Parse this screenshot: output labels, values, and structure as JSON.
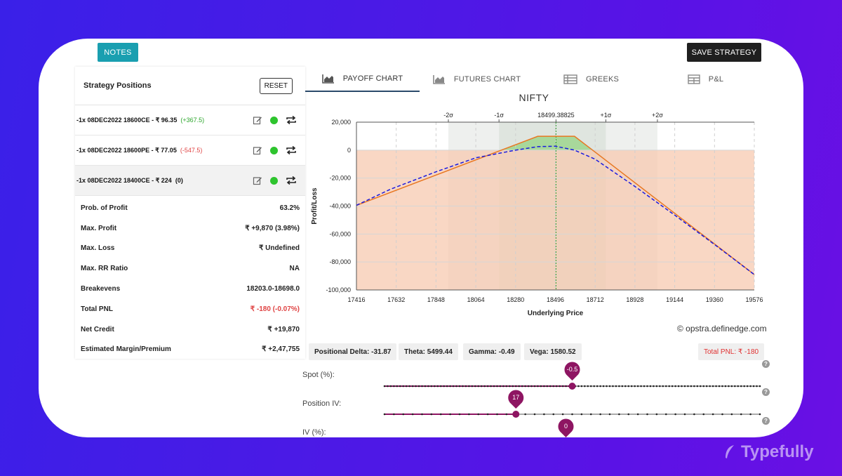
{
  "toolbar": {
    "notes_label": "NOTES",
    "save_label": "SAVE STRATEGY"
  },
  "positions_panel": {
    "title": "Strategy Positions",
    "reset_label": "RESET",
    "positions": [
      {
        "text": "-1x  08DEC2022  18600CE  - ₹ 96.35",
        "pnl": "(+367.5)",
        "pnl_type": "pos"
      },
      {
        "text": "-1x  08DEC2022  18600PE  - ₹ 77.05",
        "pnl": "(-547.5)",
        "pnl_type": "neg"
      },
      {
        "text": "-1x  08DEC2022  18400CE  - ₹ 224",
        "pnl": "(0)",
        "pnl_type": "zero"
      }
    ],
    "stats": [
      {
        "label": "Prob. of Profit",
        "value": "63.2%"
      },
      {
        "label": "Max. Profit",
        "value": "₹ +9,870 (3.98%)"
      },
      {
        "label": "Max. Loss",
        "value": "₹ Undefined"
      },
      {
        "label": "Max. RR Ratio",
        "value": "NA"
      },
      {
        "label": "Breakevens",
        "value": "18203.0-18698.0"
      },
      {
        "label": "Total PNL",
        "value": "₹ -180 (-0.07%)",
        "negative": true
      },
      {
        "label": "Net Credit",
        "value": "₹ +19,870"
      },
      {
        "label": "Estimated Margin/Premium",
        "value": "₹ +2,47,755"
      }
    ]
  },
  "tabs": [
    {
      "label": "PAYOFF CHART",
      "icon": "area-chart-icon",
      "active": true
    },
    {
      "label": "FUTURES CHART",
      "icon": "area-chart-icon",
      "active": false
    },
    {
      "label": "GREEKS",
      "icon": "table-icon",
      "active": false
    },
    {
      "label": "P&L",
      "icon": "grid-icon",
      "active": false
    }
  ],
  "chart_data": {
    "type": "line",
    "title": "NIFTY",
    "xlabel": "Underlying Price",
    "ylabel": "Profit/Loss",
    "xlim": [
      17416,
      19576
    ],
    "ylim": [
      -100000,
      20000
    ],
    "x_ticks": [
      "17416",
      "17632",
      "17848",
      "18064",
      "18280",
      "18496",
      "18712",
      "18928",
      "19144",
      "19360",
      "19576"
    ],
    "y_ticks": [
      "20,000",
      "0",
      "-20,000",
      "-40,000",
      "-60,000",
      "-80,000",
      "-100,000"
    ],
    "sigma_ticks": [
      {
        "label": "-2σ",
        "x": 17915
      },
      {
        "label": "-1σ",
        "x": 18190
      },
      {
        "label": "18499.38825",
        "x": 18499.38825
      },
      {
        "label": "+1σ",
        "x": 18770
      },
      {
        "label": "+2σ",
        "x": 19050
      }
    ],
    "series": [
      {
        "style": "solid",
        "color": "#e87722",
        "x": [
          17416,
          18203,
          18400,
          18600,
          18698,
          19576
        ],
        "y": [
          -39500,
          0,
          9870,
          9870,
          0,
          -89000
        ]
      },
      {
        "style": "dashed",
        "color": "#1a1adf",
        "x": [
          17416,
          17600,
          17848,
          18064,
          18280,
          18400,
          18496,
          18600,
          18712,
          18928,
          19144,
          19360,
          19576
        ],
        "y": [
          -39500,
          -28000,
          -15500,
          -5500,
          0,
          2500,
          2800,
          0,
          -6500,
          -26000,
          -46500,
          -67500,
          -89000
        ]
      }
    ],
    "grid": true
  },
  "credit": "© opstra.definedge.com",
  "greeks": {
    "delta": "Positional Delta: -31.87",
    "theta": "Theta: 5499.44",
    "gamma": "Gamma: -0.49",
    "vega": "Vega: 1580.52",
    "total_pnl": "Total PNL: ₹ -180"
  },
  "sliders": {
    "spot": {
      "label": "Spot (%):",
      "value_label": "-0.5",
      "fraction": 0.5
    },
    "position_iv": {
      "label": "Position IV:",
      "value_label": "17",
      "fraction": 0.35
    },
    "iv": {
      "label": "IV (%):",
      "value_label": "0",
      "fraction": 0.5
    }
  },
  "help_label": "?",
  "brand": "Typefully",
  "colors": {
    "accent_teal": "#1a9fb0",
    "slider": "#8e1562",
    "profit": "#2ec42e",
    "loss": "#e04444"
  }
}
